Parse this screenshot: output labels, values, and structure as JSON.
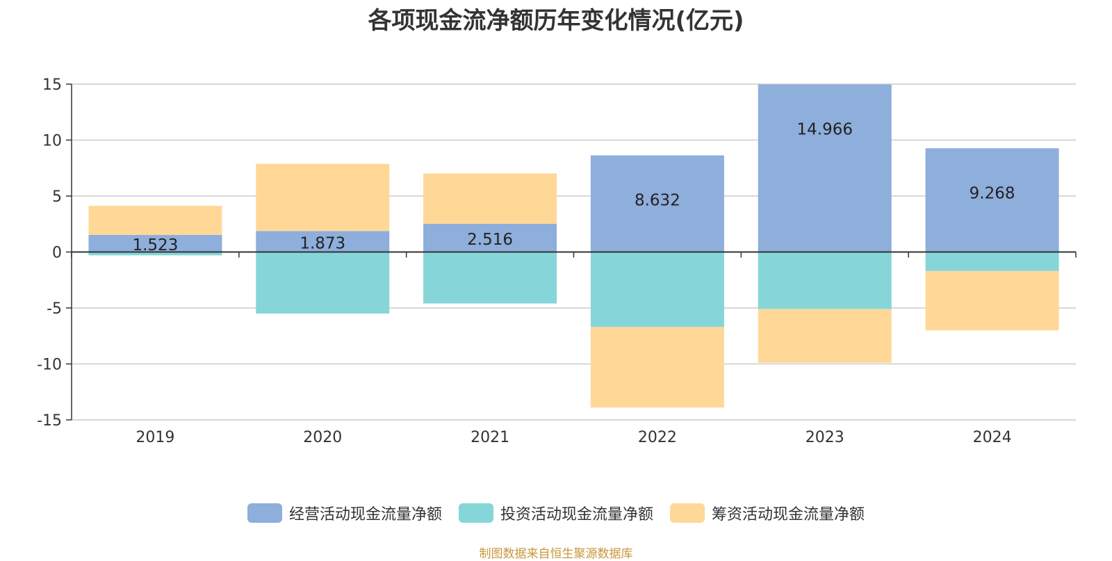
{
  "title": "各项现金流净额历年变化情况(亿元)",
  "source": "制图数据来自恒生聚源数据库",
  "colors": {
    "operating": "#8eaedb",
    "investing": "#86d6d9",
    "financing": "#ffd898",
    "grid": "#cccccc",
    "axis": "#333333",
    "text": "#333333"
  },
  "chart_data": {
    "type": "bar",
    "stacked": true,
    "categories": [
      "2019",
      "2020",
      "2021",
      "2022",
      "2023",
      "2024"
    ],
    "ylim": [
      -15,
      15
    ],
    "yticks": [
      15,
      10,
      5,
      0,
      -5,
      -10,
      -15
    ],
    "ytick_labels": [
      "15",
      "10",
      "5",
      "0",
      "-5",
      "-10",
      "-15"
    ],
    "grid": true,
    "legend_position": "bottom",
    "series": [
      {
        "name": "经营活动现金流量净额",
        "key": "operating",
        "values": [
          1.523,
          1.873,
          2.516,
          8.632,
          14.966,
          9.268
        ],
        "labels": [
          "1.523",
          "1.873",
          "2.516",
          "8.632",
          "14.966",
          "9.268"
        ]
      },
      {
        "name": "投资活动现金流量净额",
        "key": "investing",
        "values": [
          -0.3,
          -5.5,
          -4.6,
          -6.7,
          -5.1,
          -1.7
        ]
      },
      {
        "name": "筹资活动现金流量净额",
        "key": "financing",
        "values": [
          2.6,
          6.0,
          4.5,
          -7.2,
          -4.8,
          -5.3
        ]
      }
    ]
  }
}
